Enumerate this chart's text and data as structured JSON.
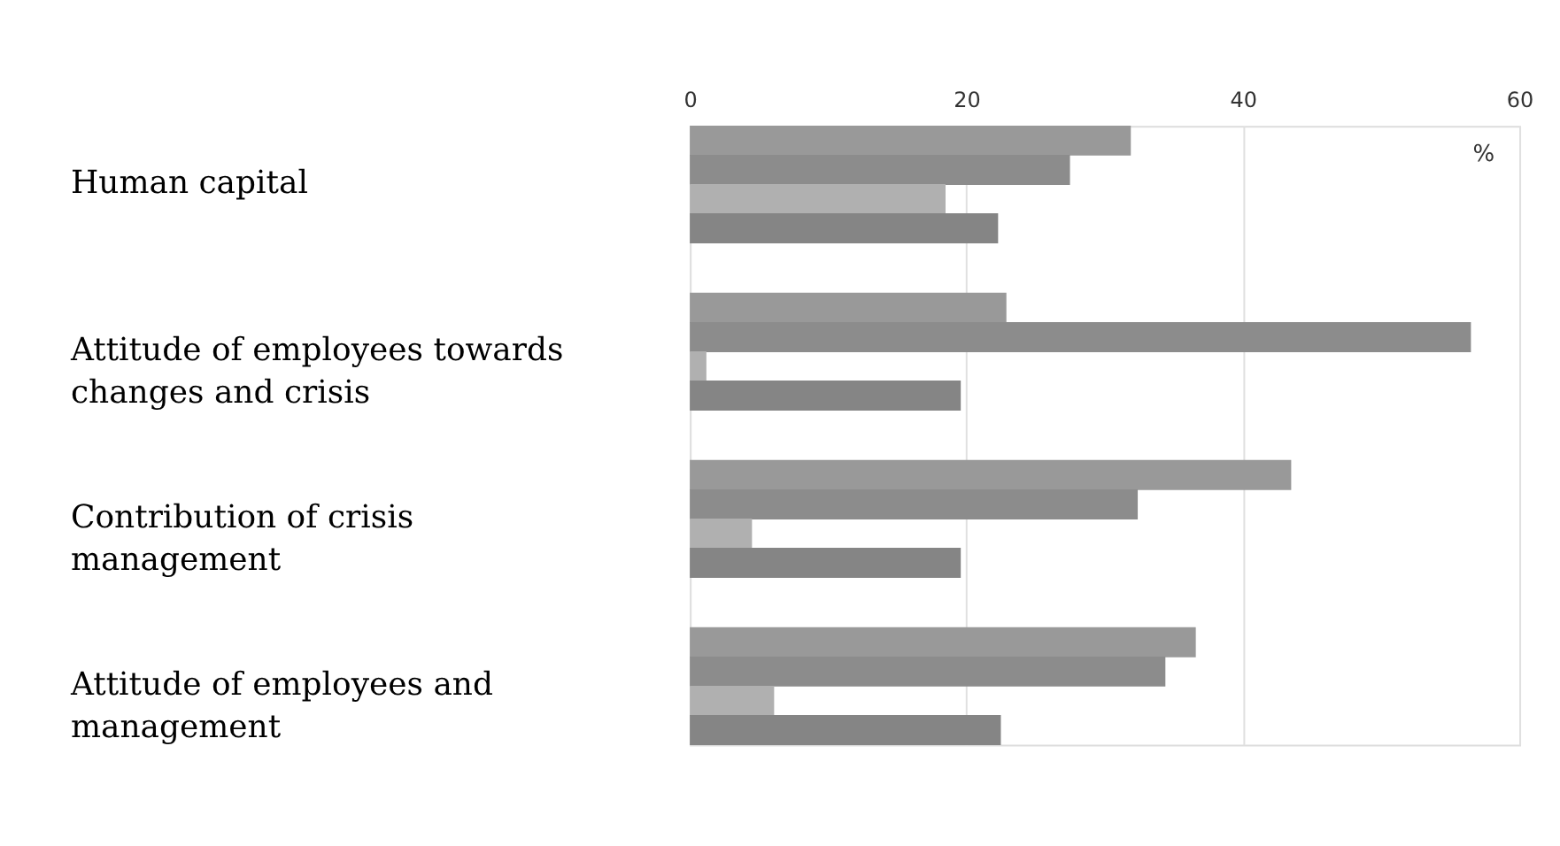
{
  "chart_data": {
    "type": "bar",
    "orientation": "horizontal",
    "categories": [
      "Human capital",
      "Attitude of employees towards changes and crisis",
      "Contribution of crisis management",
      "Attitude of employees and management"
    ],
    "series": [
      {
        "color": "#999999",
        "values": [
          31.9,
          22.9,
          43.5,
          36.6
        ]
      },
      {
        "color": "#8c8c8c",
        "values": [
          27.5,
          56.5,
          32.4,
          34.4
        ]
      },
      {
        "color": "#b0b0b0",
        "values": [
          18.5,
          1.2,
          4.5,
          6.1
        ]
      },
      {
        "color": "#858585",
        "values": [
          22.3,
          19.6,
          19.6,
          22.5
        ]
      }
    ],
    "xlim": [
      0,
      60
    ],
    "xticks": [
      0,
      20,
      40,
      60
    ],
    "grid": "x",
    "annotations": [
      "%"
    ]
  }
}
